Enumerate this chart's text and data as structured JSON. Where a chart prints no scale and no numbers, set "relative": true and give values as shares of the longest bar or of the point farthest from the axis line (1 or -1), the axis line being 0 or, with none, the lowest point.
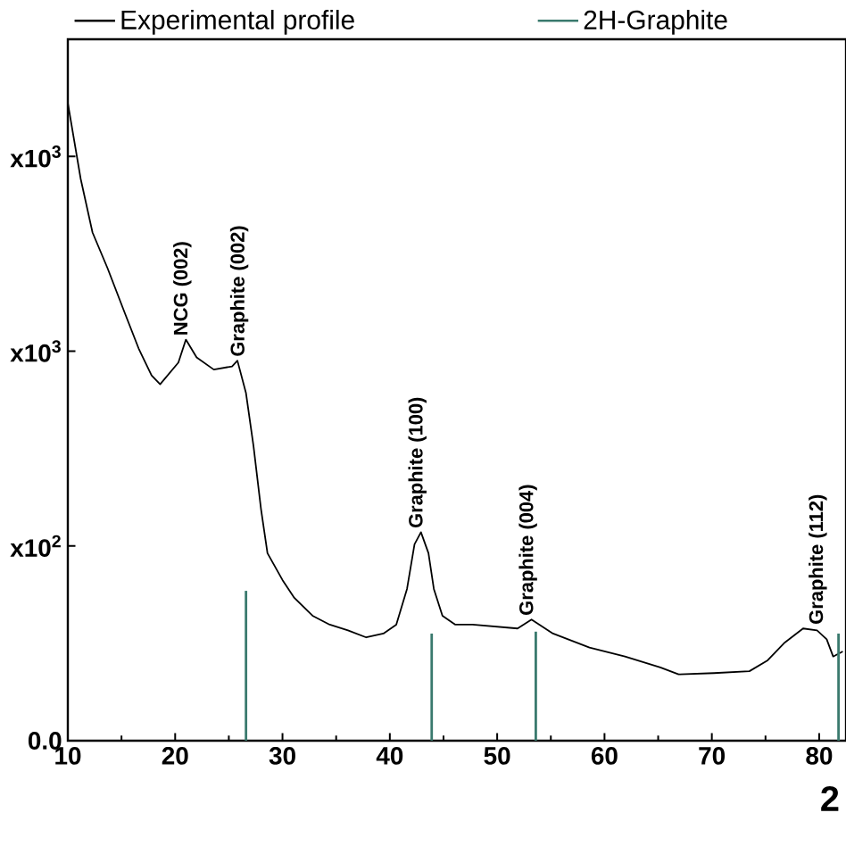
{
  "chart_data": {
    "type": "line",
    "xlabel": "2",
    "relative": true,
    "xlim": [
      10,
      82.5
    ],
    "xticks": [
      10,
      20,
      30,
      40,
      50,
      60,
      70,
      80
    ],
    "legend": "top",
    "marker": "none",
    "series": [
      {
        "name": "Experimental profile",
        "color": "#000000",
        "x": [
          10,
          11.2,
          12.3,
          13.7,
          15.3,
          16.6,
          17.8,
          18.6,
          20.3,
          21,
          22,
          23.6,
          25.3,
          25.8,
          26.6,
          27.3,
          28,
          28.6,
          30,
          31.1,
          32.8,
          34.4,
          36.1,
          37.8,
          39.4,
          40.6,
          41.6,
          42.3,
          42.9,
          43.6,
          44.1,
          44.9,
          46.1,
          47.7,
          51.9,
          53.2,
          55.2,
          58.6,
          61.9,
          65.2,
          66.9,
          70.2,
          73.5,
          75.2,
          76.8,
          78.5,
          79.8,
          80.7,
          81.3,
          82.2
        ],
        "values": [
          1,
          0.881,
          0.797,
          0.741,
          0.671,
          0.615,
          0.573,
          0.559,
          0.593,
          0.629,
          0.601,
          0.582,
          0.587,
          0.596,
          0.545,
          0.462,
          0.363,
          0.294,
          0.252,
          0.224,
          0.196,
          0.182,
          0.173,
          0.162,
          0.168,
          0.182,
          0.238,
          0.308,
          0.327,
          0.294,
          0.238,
          0.196,
          0.182,
          0.182,
          0.176,
          0.19,
          0.168,
          0.146,
          0.132,
          0.115,
          0.104,
          0.106,
          0.109,
          0.126,
          0.154,
          0.176,
          0.173,
          0.159,
          0.132,
          0.14
        ]
      },
      {
        "name": "2H-Graphite",
        "type": "bar",
        "color": "#3a7a6e",
        "x": [
          26.6,
          43.9,
          53.6,
          81.8
        ],
        "values": [
          0.235,
          0.168,
          0.171,
          0.168
        ]
      }
    ],
    "annotations": [
      {
        "text": "NCG (002)",
        "x": 21,
        "y": 0.629
      },
      {
        "text": "Graphite (002)",
        "x": 26.3,
        "y": 0.596
      },
      {
        "text": "Graphite (100)",
        "x": 42.9,
        "y": 0.327
      },
      {
        "text": "Graphite (004)",
        "x": 53.2,
        "y": 0.19
      },
      {
        "text": "Graphite (112)",
        "x": 80.2,
        "y": 0.176
      },
      "x10$^{3}$",
      "x10$^{3}$",
      "x10$^{2}$",
      "0.0"
    ]
  }
}
